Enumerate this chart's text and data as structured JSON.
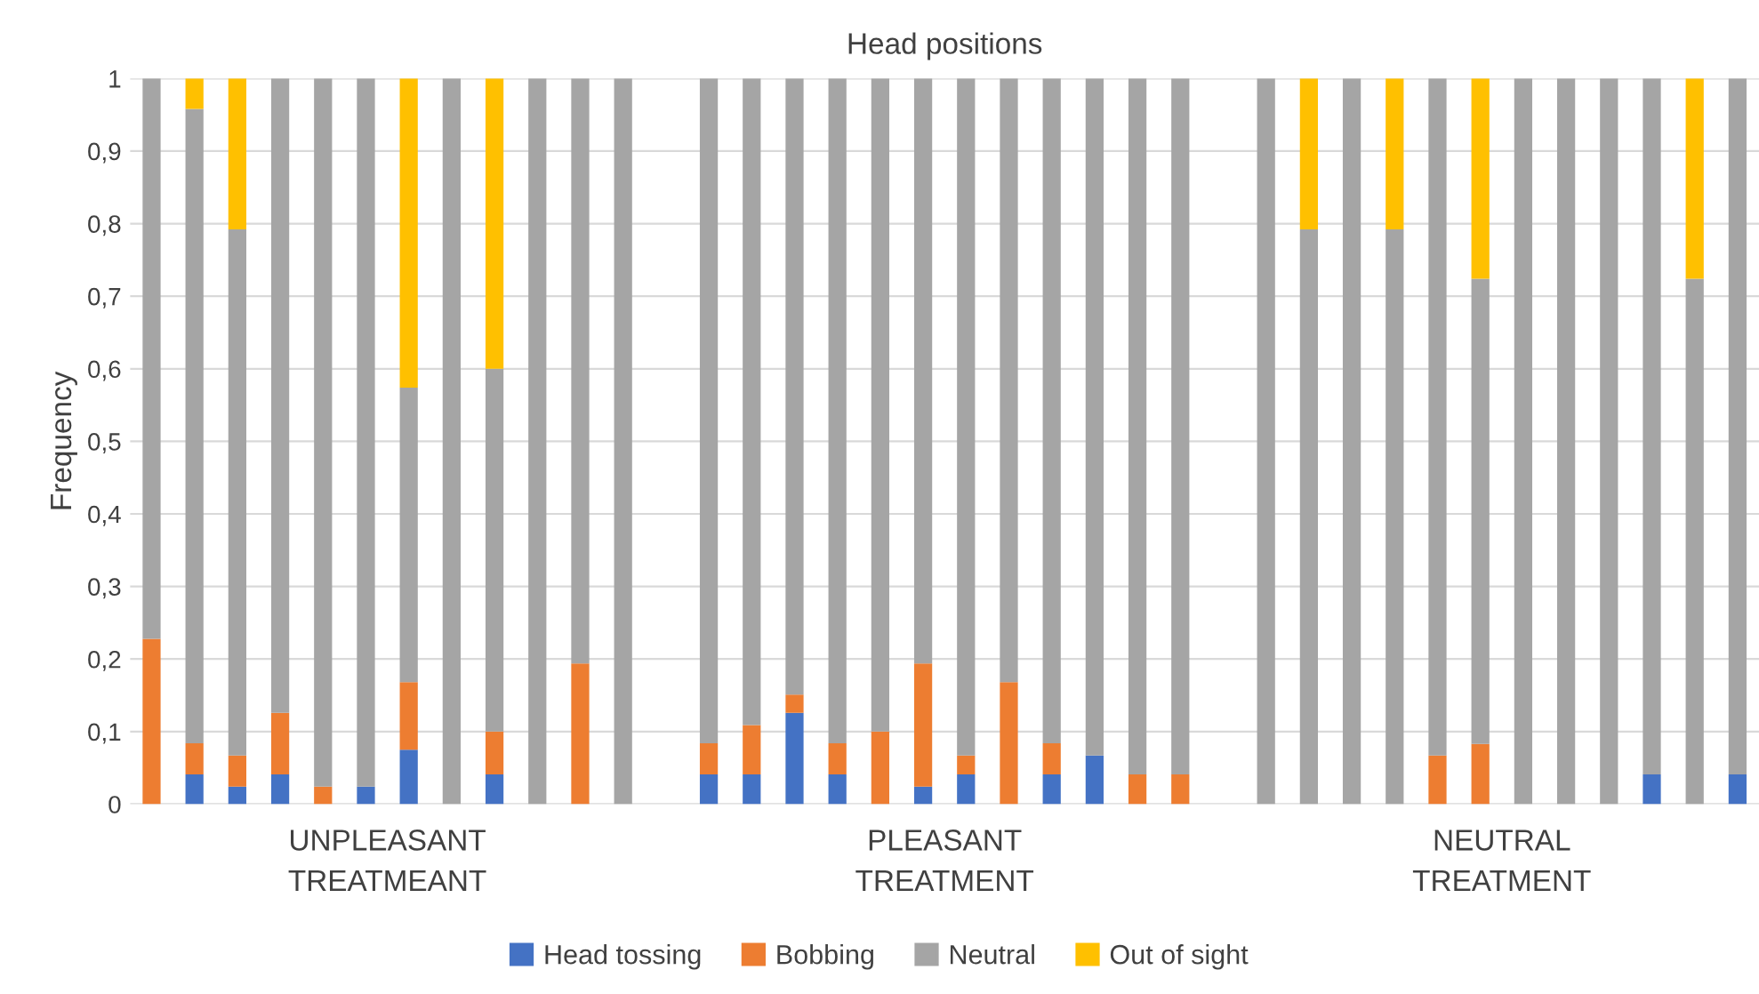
{
  "chart_data": {
    "type": "bar",
    "title": "Head positions",
    "ylabel": "Frequency",
    "stacked": true,
    "categories": [
      null,
      null,
      null,
      null,
      null,
      null,
      null,
      null,
      null,
      null,
      null,
      null,
      null,
      null,
      null,
      null,
      null,
      null,
      null,
      null,
      null,
      null,
      null,
      null,
      null,
      null,
      null,
      null,
      null,
      null,
      null,
      null,
      null,
      null,
      null,
      null,
      null,
      null
    ],
    "series": [
      {
        "name": "Head tossing",
        "color": "#4472c4",
        "values": [
          0,
          0.041,
          0.024,
          0.041,
          0,
          0.024,
          0.075,
          0,
          0.041,
          0,
          0,
          0,
          null,
          0.041,
          0.041,
          0.126,
          0.041,
          0,
          0.024,
          0.041,
          0,
          0.041,
          0.067,
          0,
          0,
          null,
          0,
          0,
          0,
          0,
          0,
          0,
          0,
          0,
          0,
          0.041,
          0,
          0.041
        ]
      },
      {
        "name": "Bobbing",
        "color": "#ed7d31",
        "values": [
          0.228,
          0.043,
          0.043,
          0.085,
          0.024,
          0,
          0.093,
          0,
          0.059,
          0,
          0.194,
          0,
          null,
          0.043,
          0.068,
          0.025,
          0.043,
          0.1,
          0.17,
          0.026,
          0.168,
          0.043,
          0,
          0.041,
          0.041,
          null,
          0,
          0,
          0,
          0,
          0.067,
          0.083,
          0,
          0,
          0,
          0,
          0,
          0
        ]
      },
      {
        "name": "Neutral",
        "color": "#a5a5a5",
        "values": [
          0.772,
          0.874,
          0.725,
          0.874,
          0.976,
          0.976,
          0.406,
          1,
          0.5,
          1,
          0.806,
          1,
          null,
          0.916,
          0.891,
          0.849,
          0.916,
          0.9,
          0.806,
          0.933,
          0.832,
          0.916,
          0.933,
          0.959,
          0.959,
          null,
          1,
          0.792,
          1,
          0.792,
          0.933,
          0.641,
          1,
          1,
          1,
          0.959,
          0.724,
          0.959
        ]
      },
      {
        "name": "Out of sight",
        "color": "#ffc000",
        "values": [
          0,
          0.042,
          0.208,
          0,
          0,
          0,
          0.426,
          0,
          0.4,
          0,
          0,
          0,
          null,
          0,
          0,
          0,
          0,
          0,
          0,
          0,
          0,
          0,
          0,
          0,
          0,
          null,
          0,
          0.208,
          0,
          0.208,
          0,
          0.276,
          0,
          0,
          0,
          0,
          0.276,
          0
        ]
      }
    ],
    "annotations": [
      "UNPLEASANT\nTREATMEANT",
      "PLEASANT\nTREATMENT",
      "NEUTRAL\nTREATMENT"
    ],
    "ylim": [
      0,
      1
    ],
    "yticks": [
      0,
      {
        "value": 0.1,
        "label": "0,1"
      },
      {
        "value": 0.2,
        "label": "0,2"
      },
      {
        "value": 0.3,
        "label": "0,3"
      },
      {
        "value": 0.4,
        "label": "0,4"
      },
      {
        "value": 0.5,
        "label": "0,5"
      },
      {
        "value": 0.6,
        "label": "0,6"
      },
      {
        "value": 0.7,
        "label": "0,7"
      },
      {
        "value": 0.8,
        "label": "0,8"
      },
      {
        "value": 0.9,
        "label": "0,9"
      },
      1
    ],
    "grid": "y",
    "legend": "bottom"
  }
}
